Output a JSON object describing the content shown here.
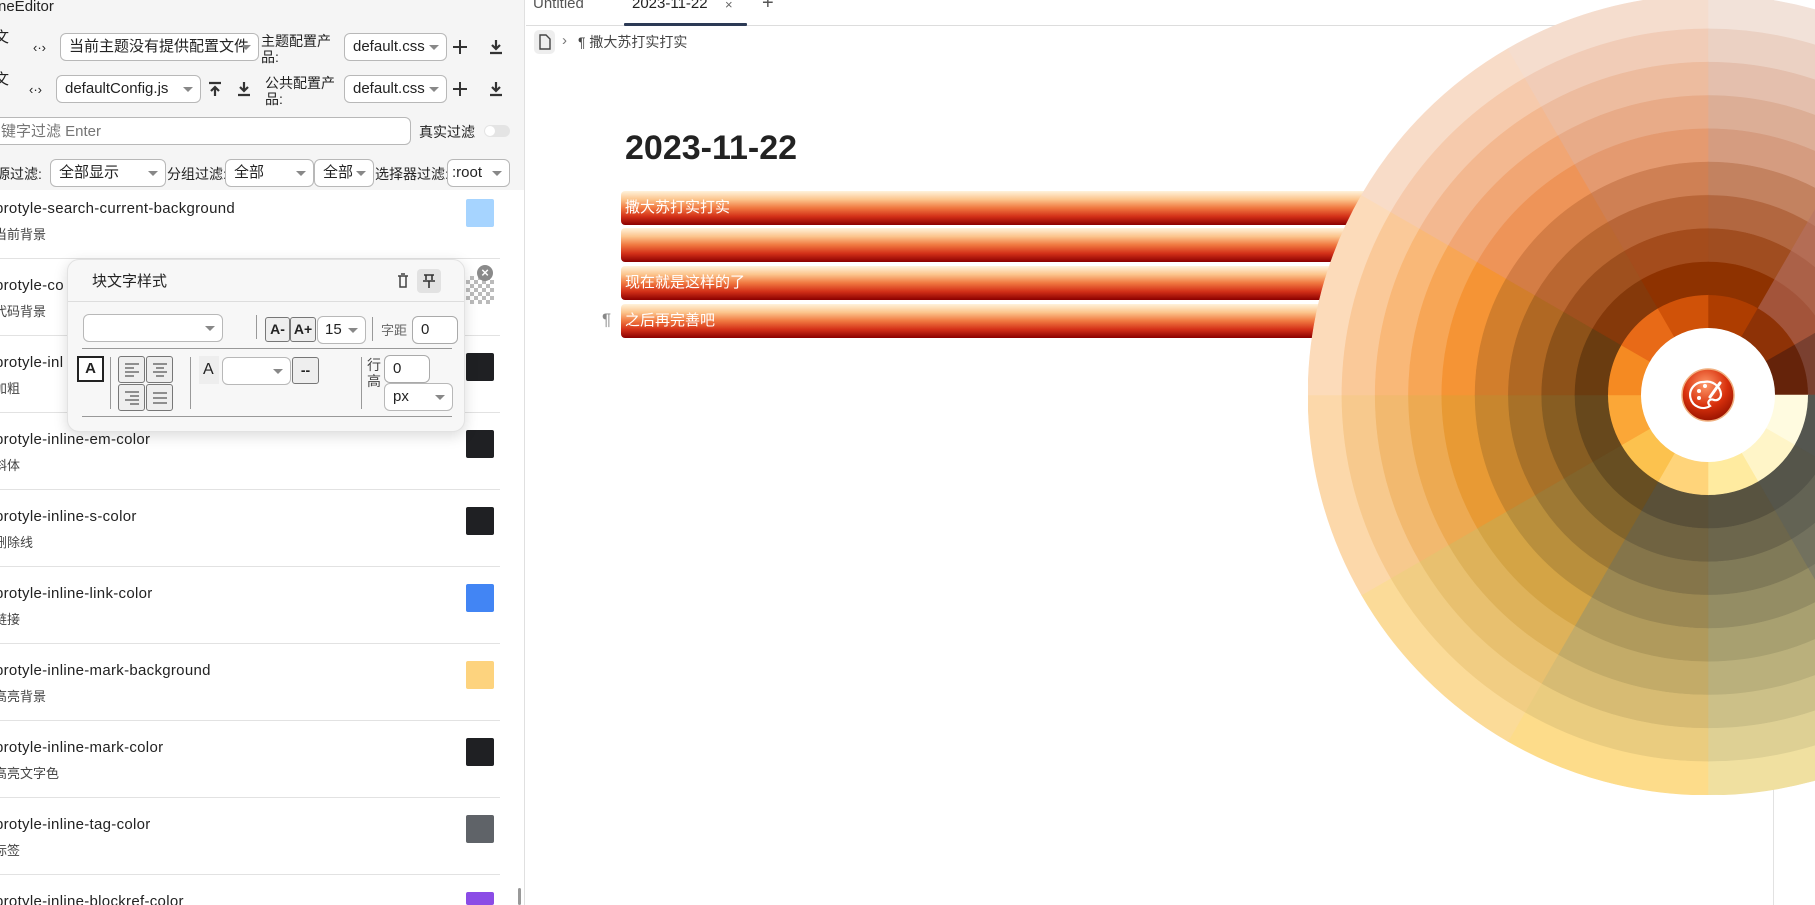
{
  "left_panel": {
    "title": "neEditor",
    "row1": {
      "prefix": "文",
      "code_icon": "‹·›",
      "config_select": "当前主题没有提供配置文件",
      "product_label": "主题配置产品:",
      "product_select": "default.css"
    },
    "row2": {
      "prefix": "文",
      "code_icon": "‹·›",
      "config_select": "defaultConfig.js",
      "product_label": "公共配置产品:",
      "product_select": "default.css"
    },
    "search": {
      "placeholder": "键字过滤 Enter",
      "real_filter_label": "真实过滤",
      "real_filter_on": false
    },
    "filters": {
      "source_label": "源过滤:",
      "source_value": "全部显示",
      "group_label": "分组过滤:",
      "group_value": "全部",
      "group_value2": "全部",
      "selector_label": "选择器过滤:",
      "selector_value": ":root"
    },
    "items": [
      {
        "name": "protyle-search-current-background",
        "desc": "当前背景",
        "color": "#a6d4ff"
      },
      {
        "name": "protyle-co",
        "desc": "代码背景",
        "color": "transparent"
      },
      {
        "name": "protyle-inl",
        "desc": "加粗",
        "color": "#1f2023"
      },
      {
        "name": "protyle-inline-em-color",
        "desc": "斜体",
        "color": "#1f2023"
      },
      {
        "name": "protyle-inline-s-color",
        "desc": "删除线",
        "color": "#1f2023"
      },
      {
        "name": "protyle-inline-link-color",
        "desc": "链接",
        "color": "#4285f4"
      },
      {
        "name": "protyle-inline-mark-background",
        "desc": "高亮背景",
        "color": "#fdd37e"
      },
      {
        "name": "protyle-inline-mark-color",
        "desc": "高亮文字色",
        "color": "#1f2023"
      },
      {
        "name": "protyle-inline-tag-color",
        "desc": "标签",
        "color": "#5f6368"
      },
      {
        "name": "protyle-inline-blockref-color",
        "desc": "",
        "color": "#8b4ce6"
      }
    ]
  },
  "popup": {
    "title": "块文字样式",
    "font_select": "",
    "decrease_label": "A-",
    "increase_label": "A+",
    "font_size": "15",
    "letter_spacing_label": "字距",
    "letter_spacing": "0",
    "text_color_label": "A",
    "color_label": "A",
    "color_select": "",
    "dash_button": "--",
    "line_height_label": "行高",
    "line_height": "0",
    "unit": "px"
  },
  "editor": {
    "tabs": [
      {
        "label": "Untitled",
        "active": false
      },
      {
        "label": "2023-11-22",
        "active": true
      }
    ],
    "close_label": "×",
    "new_tab_label": "+",
    "breadcrumb_sep": "›",
    "breadcrumb_label": "¶ 撒大苏打实打实",
    "heading": "2023-11-22",
    "blocks": [
      "撒大苏打实打实",
      "",
      "现在就是这样的了",
      "之后再完善吧"
    ],
    "para_marker": "¶"
  },
  "colors": {
    "accent": "#2c3a55",
    "wheel_sectors": [
      {
        "inner": "#ae3d00",
        "dark": "#8e3200",
        "mid": "#d59c80",
        "light": "#f2e2d9"
      },
      {
        "inner": "#8e3206",
        "dark": "#a3543a",
        "mid": "#c48670",
        "light": "#eedad0"
      },
      {
        "inner": "#65230a",
        "dark": "#7a4030",
        "mid": "#a8705a",
        "light": "#e8d0c8"
      },
      {
        "inner": "#fffbe0",
        "dark": "#545650",
        "mid": "#8a8a80",
        "light": "#d8d4c0"
      },
      {
        "inner": "#fff5c8",
        "dark": "#55554a",
        "mid": "#8e8c72",
        "light": "#e0d8b0"
      },
      {
        "inner": "#ffeba0",
        "dark": "#585340",
        "mid": "#a8a070",
        "light": "#f0e0a0"
      },
      {
        "inner": "#ffd47a",
        "dark": "#5a5038",
        "mid": "#b09a5c",
        "light": "#fddc8a"
      },
      {
        "inner": "#fcc24e",
        "dark": "#674e22",
        "mid": "#d4a445",
        "light": "#fbdb98"
      },
      {
        "inner": "#fba737",
        "dark": "#67481c",
        "mid": "#e89a34",
        "light": "#fcd8aa"
      },
      {
        "inner": "#f58a22",
        "dark": "#6a3c10",
        "mid": "#f59435",
        "light": "#fcdbba"
      },
      {
        "inner": "#e86a17",
        "dark": "#85390a",
        "mid": "#ee9458",
        "light": "#f8dcc8"
      },
      {
        "inner": "#d05208",
        "dark": "#8e3200",
        "mid": "#e49a70",
        "light": "#f5ddce"
      }
    ]
  }
}
